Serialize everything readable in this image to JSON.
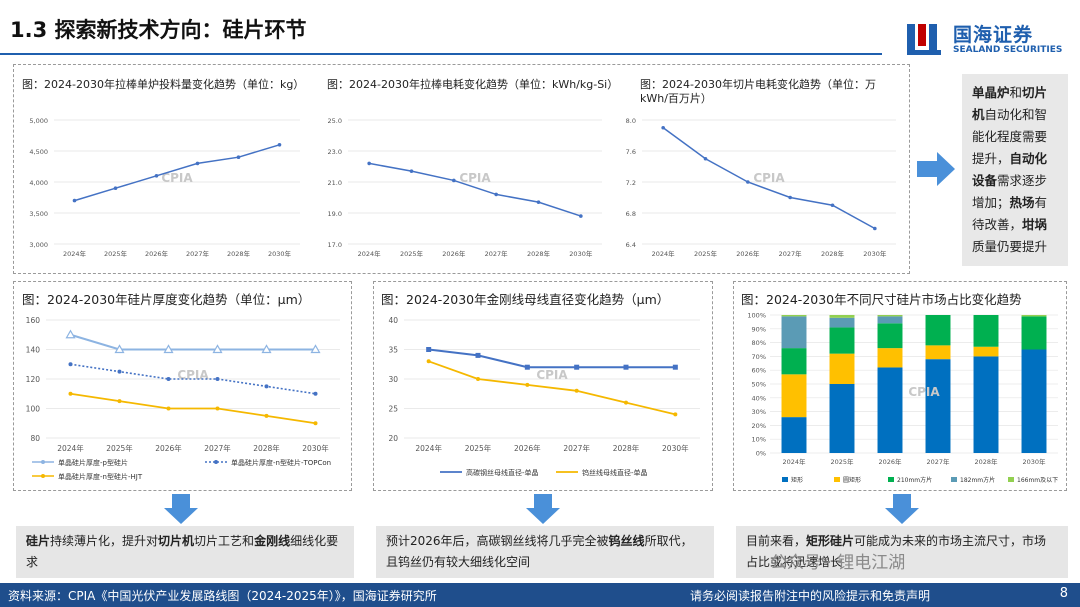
{
  "header": {
    "title": "1.3 探索新技术方向：硅片环节",
    "logo_cn": "国海证券",
    "logo_en": "SEALAND SECURITIES"
  },
  "side_box": {
    "parts": [
      {
        "t": "单晶炉",
        "b": true
      },
      {
        "t": "和",
        "b": false
      },
      {
        "t": "切片机",
        "b": true
      },
      {
        "t": "自动化和智能化程度需要提升，",
        "b": false
      },
      {
        "t": "自动化设备",
        "b": true
      },
      {
        "t": "需求逐步增加；",
        "b": false
      },
      {
        "t": "热场",
        "b": true
      },
      {
        "t": "有待改善，",
        "b": false
      },
      {
        "t": "坩埚",
        "b": true
      },
      {
        "t": "质量仍要提升",
        "b": false
      }
    ]
  },
  "notes": [
    {
      "parts": [
        {
          "t": "硅片",
          "b": true
        },
        {
          "t": "持续薄片化，提升对",
          "b": false
        },
        {
          "t": "切片机",
          "b": true
        },
        {
          "t": "切片工艺和",
          "b": false
        },
        {
          "t": "金刚线",
          "b": true
        },
        {
          "t": "细线化要求",
          "b": false
        }
      ]
    },
    {
      "parts": [
        {
          "t": "预计2026年后，高碳钢丝线将几乎完全被",
          "b": false
        },
        {
          "t": "钨丝线",
          "b": true
        },
        {
          "t": "所取代，且钨丝仍有较大细线化空间",
          "b": false
        }
      ]
    },
    {
      "parts": [
        {
          "t": "目前来看，",
          "b": false
        },
        {
          "t": "矩形硅片",
          "b": true
        },
        {
          "t": "可能成为未来的市场主流尺寸，市场占比或将迅速增长",
          "b": false
        }
      ]
    }
  ],
  "footer": {
    "source": "资料来源：CPIA《中国光伏产业发展路线图（2024-2025年）》，国海证券研究所",
    "disclaimer": "请务必阅读报告附注中的风险提示和免责声明",
    "page": "8"
  },
  "watermark": {
    "text": "公众号 · 锂电江湖",
    "cpia": "CPIA"
  },
  "colors": {
    "line_blue": "#4472c4",
    "line_lightblue": "#8db4e2",
    "line_gold": "#f5b800",
    "bar_blue": "#0070c0",
    "bar_gold": "#ffc000",
    "bar_green": "#00b050",
    "bar_teal": "#5b9bb5",
    "bar_lightgreen": "#92d050",
    "accent": "#1f5fae"
  },
  "chart_data": [
    {
      "id": "c1",
      "type": "line",
      "title": "图：2024-2030年拉棒单炉投料量变化趋势（单位：kg）",
      "x": [
        "2024年",
        "2025年",
        "2026年",
        "2027年",
        "2028年",
        "2030年"
      ],
      "ylim": [
        3000,
        5000
      ],
      "yticks": [
        "3,000",
        "3,500",
        "4,000",
        "4,500",
        "5,000"
      ],
      "ytick_values": [
        3000,
        3500,
        4000,
        4500,
        5000
      ],
      "series": [
        {
          "values": [
            3700,
            3900,
            4100,
            4300,
            4400,
            4600
          ]
        }
      ]
    },
    {
      "id": "c2",
      "type": "line",
      "title": "图：2024-2030年拉棒电耗变化趋势（单位：kWh/kg-Si）",
      "x": [
        "2024年",
        "2025年",
        "2026年",
        "2027年",
        "2028年",
        "2030年"
      ],
      "ylim": [
        17,
        25
      ],
      "yticks": [
        "17.0",
        "19.0",
        "21.0",
        "23.0",
        "25.0"
      ],
      "ytick_values": [
        17,
        19,
        21,
        23,
        25
      ],
      "series": [
        {
          "values": [
            22.2,
            21.7,
            21.1,
            20.2,
            19.7,
            18.8
          ]
        }
      ]
    },
    {
      "id": "c3",
      "type": "line",
      "title_lines": [
        "图：2024-2030年切片电耗变化趋势（单位：万",
        "kWh/百万片）"
      ],
      "x": [
        "2024年",
        "2025年",
        "2026年",
        "2027年",
        "2028年",
        "2030年"
      ],
      "ylim": [
        6.4,
        8.0
      ],
      "yticks": [
        "6.4",
        "6.8",
        "7.2",
        "7.6",
        "8.0"
      ],
      "ytick_values": [
        6.4,
        6.8,
        7.2,
        7.6,
        8.0
      ],
      "series": [
        {
          "values": [
            7.9,
            7.5,
            7.2,
            7.0,
            6.9,
            6.6
          ]
        }
      ]
    },
    {
      "id": "c4",
      "type": "line",
      "title": "图：2024-2030年硅片厚度变化趋势（单位：μm）",
      "x": [
        "2024年",
        "2025年",
        "2026年",
        "2027年",
        "2028年",
        "2030年"
      ],
      "ylim": [
        80,
        160
      ],
      "yticks": [
        "80",
        "100",
        "120",
        "140",
        "160"
      ],
      "ytick_values": [
        80,
        100,
        120,
        140,
        160
      ],
      "series": [
        {
          "name": "单晶硅片厚度-p型硅片",
          "values": [
            150,
            140,
            140,
            140,
            140,
            140
          ]
        },
        {
          "name": "单晶硅片厚度-n型硅片-TOPCon",
          "values": [
            130,
            125,
            120,
            120,
            115,
            110
          ]
        },
        {
          "name": "单晶硅片厚度-n型硅片-HJT",
          "values": [
            110,
            105,
            100,
            100,
            95,
            90
          ]
        }
      ]
    },
    {
      "id": "c5",
      "type": "line",
      "title": "图：2024-2030年金刚线母线直径变化趋势（μm）",
      "x": [
        "2024年",
        "2025年",
        "2026年",
        "2027年",
        "2028年",
        "2030年"
      ],
      "ylim": [
        20,
        40
      ],
      "yticks": [
        "20",
        "25",
        "30",
        "35",
        "40"
      ],
      "ytick_values": [
        20,
        25,
        30,
        35,
        40
      ],
      "series": [
        {
          "name": "高碳钢丝母线直径-单晶",
          "values": [
            35,
            34,
            32,
            32,
            32,
            32
          ]
        },
        {
          "name": "钨丝线母线直径-单晶",
          "values": [
            33,
            30,
            29,
            28,
            26,
            24
          ]
        }
      ]
    },
    {
      "id": "c6",
      "type": "bar",
      "stacked": true,
      "title": "图：2024-2030年不同尺寸硅片市场占比变化趋势",
      "categories": [
        "2024年",
        "2025年",
        "2026年",
        "2027年",
        "2028年",
        "2030年"
      ],
      "ylim": [
        0,
        100
      ],
      "yticks": [
        "0%",
        "10%",
        "20%",
        "30%",
        "40%",
        "50%",
        "60%",
        "70%",
        "80%",
        "90%",
        "100%"
      ],
      "ytick_values": [
        0,
        10,
        20,
        30,
        40,
        50,
        60,
        70,
        80,
        90,
        100
      ],
      "series": [
        {
          "name": "矩形",
          "values": [
            26,
            50,
            62,
            68,
            70,
            75
          ]
        },
        {
          "name": "圆矩形",
          "values": [
            31,
            22,
            14,
            10,
            7,
            0
          ]
        },
        {
          "name": "210mm方片",
          "values": [
            19,
            19,
            18,
            22,
            23,
            24
          ]
        },
        {
          "name": "182mm方片",
          "values": [
            23,
            7,
            5,
            0,
            0,
            0
          ]
        },
        {
          "name": "166mm及以下",
          "values": [
            1,
            2,
            1,
            0,
            0,
            1
          ]
        }
      ]
    }
  ]
}
